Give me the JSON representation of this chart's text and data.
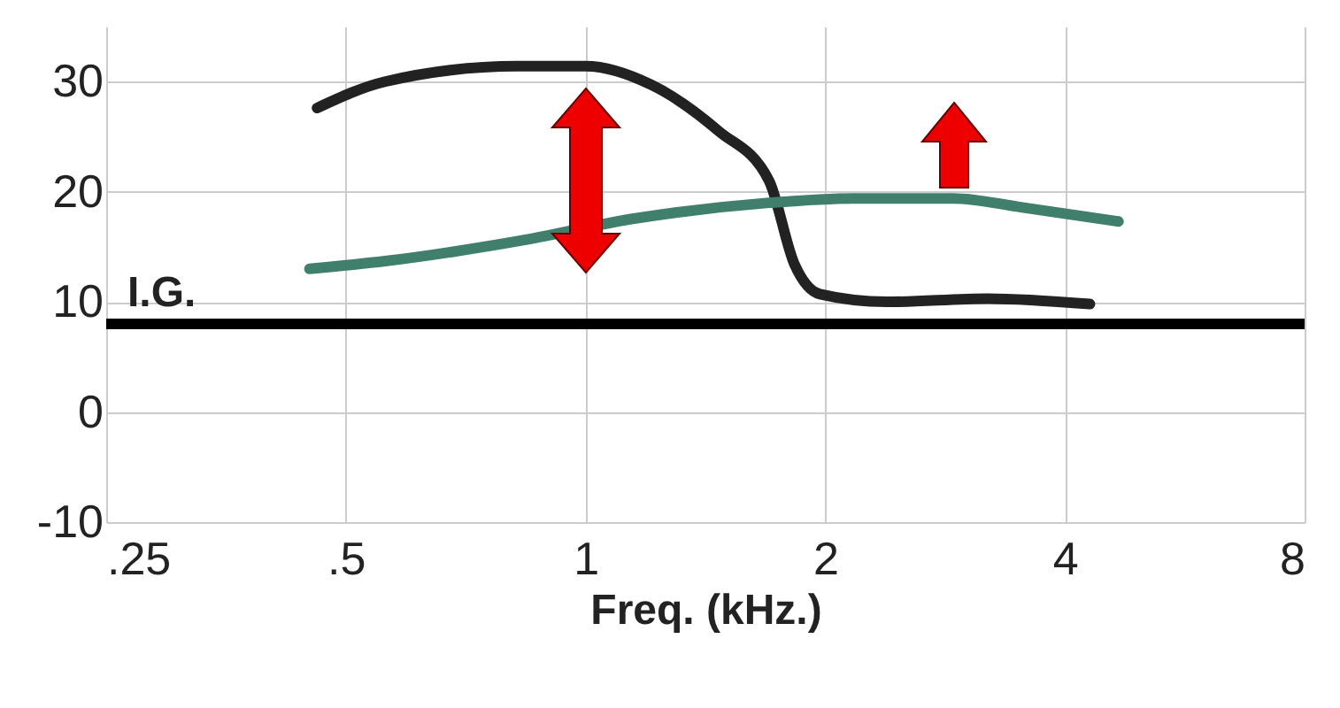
{
  "chart_data": {
    "type": "line",
    "xlabel": "Freq. (kHz.)",
    "log": "x",
    "xlim": [
      0.25,
      8
    ],
    "xticks": [
      {
        "value": 0.25,
        "label": ".25"
      },
      {
        "value": 0.5,
        "label": ".5"
      },
      1,
      2,
      4,
      8
    ],
    "ylim": [
      -10,
      35
    ],
    "yticks": [
      -10,
      0,
      10,
      20,
      30
    ],
    "grid": true,
    "line_style": "solid",
    "series": [
      {
        "color": "#222222",
        "x": [
          0.46,
          0.56,
          0.82,
          1,
          1.21,
          1.47,
          1.7,
          1.83,
          1.97,
          2.39,
          3.2,
          4.3
        ],
        "values": [
          27.6,
          30,
          31.4,
          31.4,
          29.7,
          25.5,
          21,
          13.4,
          10.7,
          10,
          10.3,
          9.8
        ]
      },
      {
        "color": "#3f7f6b",
        "x": [
          0.45,
          0.56,
          0.82,
          1.16,
          1.7,
          2.17,
          2.9,
          3.52,
          4.67
        ],
        "values": [
          13,
          13.7,
          15.5,
          17.6,
          19,
          19.4,
          19.4,
          18.6,
          17.3
        ]
      }
    ],
    "ref_lines": [
      {
        "axis": "y",
        "value": 8,
        "label": "I.G.",
        "color": "#000000"
      }
    ]
  }
}
